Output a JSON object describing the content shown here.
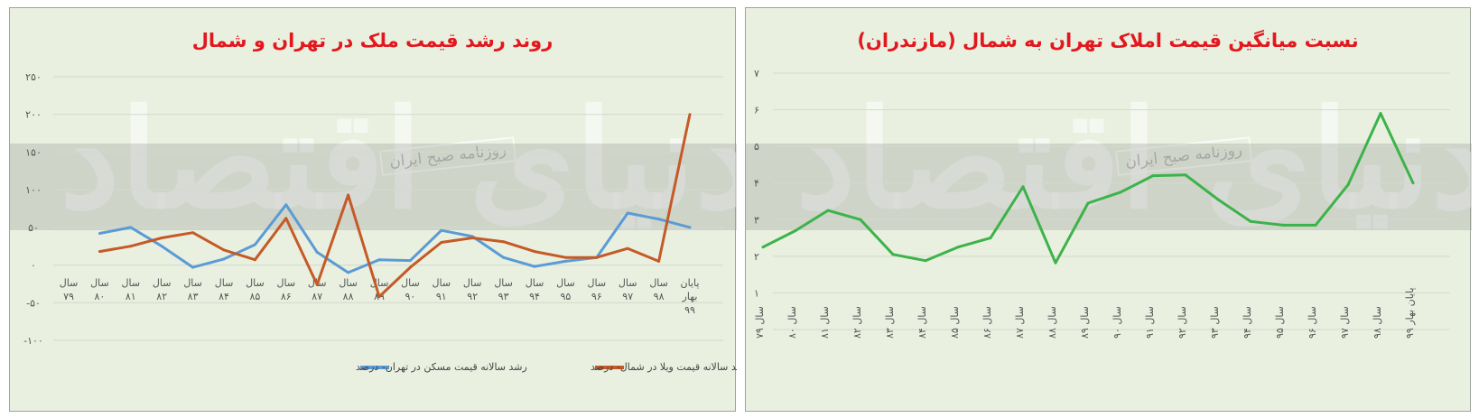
{
  "chart_data": [
    {
      "type": "line",
      "title": "روند رشد قیمت ملک در تهران و شمال",
      "categories": [
        "سال ۷۹",
        "سال ۸۰",
        "سال ۸۱",
        "سال ۸۲",
        "سال ۸۳",
        "سال ۸۴",
        "سال ۸۵",
        "سال ۸۶",
        "سال ۸۷",
        "سال ۸۸",
        "سال ۸۹",
        "سال ۹۰",
        "سال ۹۱",
        "سال ۹۲",
        "سال ۹۳",
        "سال ۹۴",
        "سال ۹۵",
        "سال ۹۶",
        "سال ۹۷",
        "سال ۹۸",
        "پایان بهار ۹۹"
      ],
      "yticks": [
        -100,
        -50,
        0,
        50,
        100,
        150,
        200,
        250
      ],
      "ytick_labels": [
        "-۱۰۰",
        "-۵۰",
        "۰",
        "۵۰",
        "۱۰۰",
        "۱۵۰",
        "۲۰۰",
        "۲۵۰"
      ],
      "ylim": [
        -100,
        250
      ],
      "series": [
        {
          "name": "رشد سالانه قیمت مسکن در تهران- درصد",
          "color": "#5b9bd5",
          "values": [
            null,
            42,
            50,
            25,
            -3,
            8,
            27,
            80,
            17,
            -10,
            7,
            6,
            46,
            38,
            10,
            -2,
            5,
            10,
            69,
            61,
            50
          ]
        },
        {
          "name": "رشد سالانه قیمت ویلا در شمال- درصد",
          "color": "#c55a27",
          "values": [
            null,
            18,
            25,
            36,
            43,
            20,
            7,
            62,
            -26,
            93,
            -42,
            -3,
            30,
            36,
            31,
            18,
            10,
            10,
            22,
            5,
            200
          ]
        }
      ],
      "legend": "bottom",
      "grid": true
    },
    {
      "type": "line",
      "title": "نسبت میانگین قیمت املاک تهران به  شمال (مازندران)",
      "categories": [
        "سال ۷۹",
        "سال ۸۰",
        "سال ۸۱",
        "سال ۸۲",
        "سال ۸۳",
        "سال ۸۴",
        "سال ۸۵",
        "سال ۸۶",
        "سال ۸۷",
        "سال ۸۸",
        "سال ۸۹",
        "سال ۹۰",
        "سال ۹۱",
        "سال ۹۲",
        "سال ۹۳",
        "سال ۹۴",
        "سال ۹۵",
        "سال ۹۶",
        "سال ۹۷",
        "سال ۹۸",
        "پایان بهار ۹۹"
      ],
      "yticks": [
        0,
        1,
        2,
        3,
        4,
        5,
        6,
        7
      ],
      "ytick_labels": [
        "۰",
        "۱",
        "۲",
        "۳",
        "۴",
        "۵",
        "۶",
        "۷"
      ],
      "ylim": [
        0,
        7
      ],
      "series": [
        {
          "color": "#3cb34a",
          "values": [
            2.25,
            2.7,
            3.25,
            3.0,
            2.05,
            1.88,
            2.25,
            2.5,
            3.9,
            1.82,
            3.45,
            3.75,
            4.2,
            4.22,
            3.55,
            2.95,
            2.85,
            2.85,
            3.95,
            5.9,
            4.0
          ]
        }
      ],
      "grid": true
    }
  ],
  "watermark": {
    "main": "دنیای اقتصاد",
    "sub": "روزنامه صبح ایران"
  }
}
